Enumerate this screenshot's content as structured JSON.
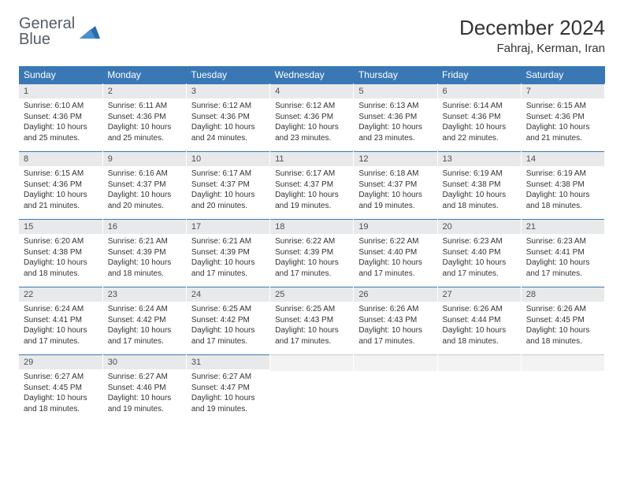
{
  "logo": {
    "line1": "General",
    "line2": "Blue"
  },
  "title": "December 2024",
  "location": "Fahraj, Kerman, Iran",
  "colors": {
    "header_bg": "#3a78b5",
    "header_fg": "#ffffff",
    "daynum_bg": "#e8e9ea",
    "daynum_border": "#3a78b5",
    "text": "#333333"
  },
  "weekdays": [
    "Sunday",
    "Monday",
    "Tuesday",
    "Wednesday",
    "Thursday",
    "Friday",
    "Saturday"
  ],
  "weeks": [
    [
      {
        "n": "1",
        "sr": "6:10 AM",
        "ss": "4:36 PM",
        "dl": "10 hours and 25 minutes."
      },
      {
        "n": "2",
        "sr": "6:11 AM",
        "ss": "4:36 PM",
        "dl": "10 hours and 25 minutes."
      },
      {
        "n": "3",
        "sr": "6:12 AM",
        "ss": "4:36 PM",
        "dl": "10 hours and 24 minutes."
      },
      {
        "n": "4",
        "sr": "6:12 AM",
        "ss": "4:36 PM",
        "dl": "10 hours and 23 minutes."
      },
      {
        "n": "5",
        "sr": "6:13 AM",
        "ss": "4:36 PM",
        "dl": "10 hours and 23 minutes."
      },
      {
        "n": "6",
        "sr": "6:14 AM",
        "ss": "4:36 PM",
        "dl": "10 hours and 22 minutes."
      },
      {
        "n": "7",
        "sr": "6:15 AM",
        "ss": "4:36 PM",
        "dl": "10 hours and 21 minutes."
      }
    ],
    [
      {
        "n": "8",
        "sr": "6:15 AM",
        "ss": "4:36 PM",
        "dl": "10 hours and 21 minutes."
      },
      {
        "n": "9",
        "sr": "6:16 AM",
        "ss": "4:37 PM",
        "dl": "10 hours and 20 minutes."
      },
      {
        "n": "10",
        "sr": "6:17 AM",
        "ss": "4:37 PM",
        "dl": "10 hours and 20 minutes."
      },
      {
        "n": "11",
        "sr": "6:17 AM",
        "ss": "4:37 PM",
        "dl": "10 hours and 19 minutes."
      },
      {
        "n": "12",
        "sr": "6:18 AM",
        "ss": "4:37 PM",
        "dl": "10 hours and 19 minutes."
      },
      {
        "n": "13",
        "sr": "6:19 AM",
        "ss": "4:38 PM",
        "dl": "10 hours and 18 minutes."
      },
      {
        "n": "14",
        "sr": "6:19 AM",
        "ss": "4:38 PM",
        "dl": "10 hours and 18 minutes."
      }
    ],
    [
      {
        "n": "15",
        "sr": "6:20 AM",
        "ss": "4:38 PM",
        "dl": "10 hours and 18 minutes."
      },
      {
        "n": "16",
        "sr": "6:21 AM",
        "ss": "4:39 PM",
        "dl": "10 hours and 18 minutes."
      },
      {
        "n": "17",
        "sr": "6:21 AM",
        "ss": "4:39 PM",
        "dl": "10 hours and 17 minutes."
      },
      {
        "n": "18",
        "sr": "6:22 AM",
        "ss": "4:39 PM",
        "dl": "10 hours and 17 minutes."
      },
      {
        "n": "19",
        "sr": "6:22 AM",
        "ss": "4:40 PM",
        "dl": "10 hours and 17 minutes."
      },
      {
        "n": "20",
        "sr": "6:23 AM",
        "ss": "4:40 PM",
        "dl": "10 hours and 17 minutes."
      },
      {
        "n": "21",
        "sr": "6:23 AM",
        "ss": "4:41 PM",
        "dl": "10 hours and 17 minutes."
      }
    ],
    [
      {
        "n": "22",
        "sr": "6:24 AM",
        "ss": "4:41 PM",
        "dl": "10 hours and 17 minutes."
      },
      {
        "n": "23",
        "sr": "6:24 AM",
        "ss": "4:42 PM",
        "dl": "10 hours and 17 minutes."
      },
      {
        "n": "24",
        "sr": "6:25 AM",
        "ss": "4:42 PM",
        "dl": "10 hours and 17 minutes."
      },
      {
        "n": "25",
        "sr": "6:25 AM",
        "ss": "4:43 PM",
        "dl": "10 hours and 17 minutes."
      },
      {
        "n": "26",
        "sr": "6:26 AM",
        "ss": "4:43 PM",
        "dl": "10 hours and 17 minutes."
      },
      {
        "n": "27",
        "sr": "6:26 AM",
        "ss": "4:44 PM",
        "dl": "10 hours and 18 minutes."
      },
      {
        "n": "28",
        "sr": "6:26 AM",
        "ss": "4:45 PM",
        "dl": "10 hours and 18 minutes."
      }
    ],
    [
      {
        "n": "29",
        "sr": "6:27 AM",
        "ss": "4:45 PM",
        "dl": "10 hours and 18 minutes."
      },
      {
        "n": "30",
        "sr": "6:27 AM",
        "ss": "4:46 PM",
        "dl": "10 hours and 19 minutes."
      },
      {
        "n": "31",
        "sr": "6:27 AM",
        "ss": "4:47 PM",
        "dl": "10 hours and 19 minutes."
      },
      {
        "empty": true
      },
      {
        "empty": true
      },
      {
        "empty": true
      },
      {
        "empty": true
      }
    ]
  ],
  "labels": {
    "sunrise": "Sunrise:",
    "sunset": "Sunset:",
    "daylight": "Daylight:"
  }
}
